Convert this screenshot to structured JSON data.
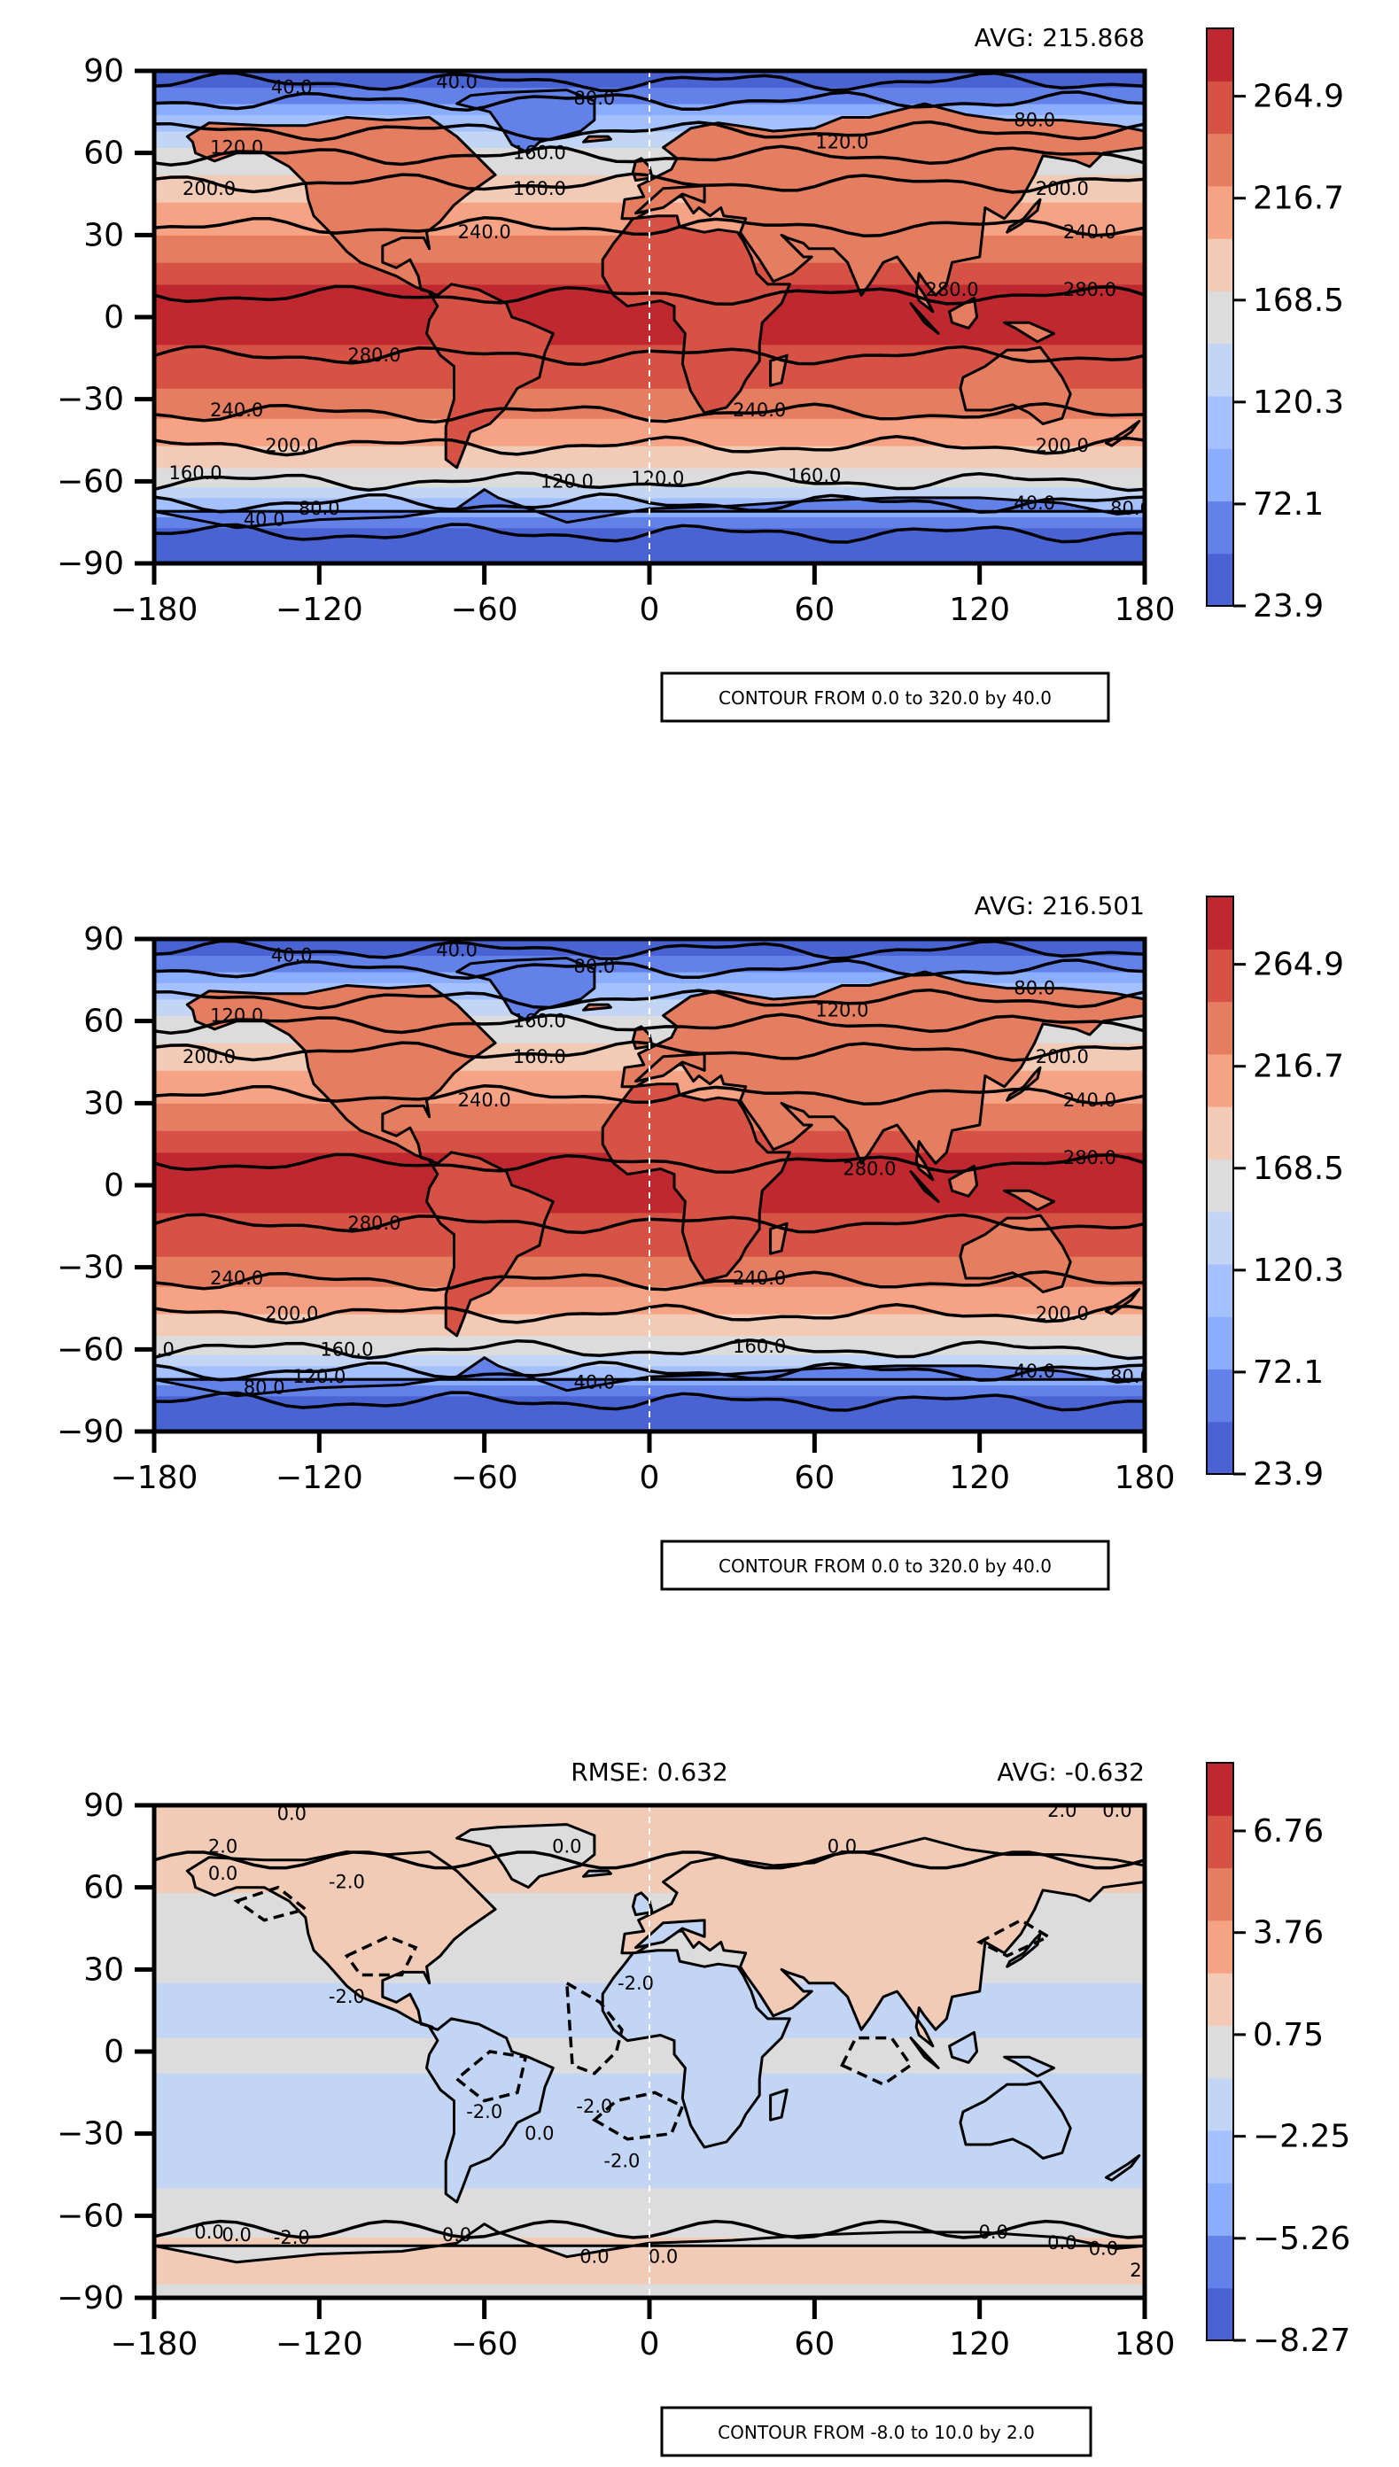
{
  "chart_data": [
    {
      "type": "heatmap",
      "avg_text": "AVG: 215.868",
      "rmse_text": "",
      "x_ticks": [
        "−180",
        "−120",
        "−60",
        "0",
        "60",
        "120",
        "180"
      ],
      "y_ticks": [
        "90",
        "60",
        "30",
        "0",
        "−30",
        "−60",
        "−90"
      ],
      "xlim": [
        -180,
        180
      ],
      "ylim": [
        -90,
        90
      ],
      "colorbar": {
        "min": 23.9,
        "max": 297.0,
        "tick_values": [
          23.9,
          72.1,
          120.3,
          168.5,
          216.7,
          264.9
        ],
        "tick_labels": [
          "23.9",
          "72.1",
          "120.3",
          "168.5",
          "216.7",
          "264.9"
        ],
        "colors": [
          "#4a63d3",
          "#6282ea",
          "#8badfd",
          "#a4c1fe",
          "#c3d5f4",
          "#dcdcdc",
          "#f2cbb7",
          "#f6a385",
          "#e57e60",
          "#d65244",
          "#c0282f"
        ]
      },
      "contour_labels": [
        "40.0",
        "40.0",
        "80.0",
        "120.0",
        "160.0",
        "120.0",
        "80.0",
        "200.0",
        "160.0",
        "200.0",
        "240.0",
        "240.0",
        "280.0",
        "280.0",
        "280.0",
        "240.0",
        "240.0",
        "200.0",
        "200.0",
        "160.0",
        "120.0",
        "120.0",
        "160.0",
        "80.0",
        "40.0",
        "40.0",
        "80.0"
      ],
      "note": "CONTOUR FROM 0.0 to 320.0 by 40.0"
    },
    {
      "type": "heatmap",
      "avg_text": "AVG: 216.501",
      "rmse_text": "",
      "x_ticks": [
        "−180",
        "−120",
        "−60",
        "0",
        "60",
        "120",
        "180"
      ],
      "y_ticks": [
        "90",
        "60",
        "30",
        "0",
        "−30",
        "−60",
        "−90"
      ],
      "xlim": [
        -180,
        180
      ],
      "ylim": [
        -90,
        90
      ],
      "colorbar": {
        "min": 23.9,
        "max": 297.0,
        "tick_values": [
          23.9,
          72.1,
          120.3,
          168.5,
          216.7,
          264.9
        ],
        "tick_labels": [
          "23.9",
          "72.1",
          "120.3",
          "168.5",
          "216.7",
          "264.9"
        ],
        "colors": [
          "#4a63d3",
          "#6282ea",
          "#8badfd",
          "#a4c1fe",
          "#c3d5f4",
          "#dcdcdc",
          "#f2cbb7",
          "#f6a385",
          "#e57e60",
          "#d65244",
          "#c0282f"
        ]
      },
      "contour_labels": [
        "40.0",
        "40.0",
        "80.0",
        "120.0",
        "160.0",
        "120.0",
        "80.0",
        "200.0",
        "160.0",
        "200.0",
        "240.0",
        "240.0",
        "280.0",
        "280.0",
        "280.0",
        "240.0",
        "240.0",
        "200.0",
        "200.0",
        "160.0",
        "160.0",
        "120.0",
        "80.0",
        "40.0",
        "40.0",
        "80.0",
        "0.0"
      ],
      "note": "CONTOUR FROM 0.0 to 320.0 by 40.0"
    },
    {
      "type": "heatmap",
      "avg_text": "AVG: -0.632",
      "rmse_text": "RMSE: 0.632",
      "x_ticks": [
        "−180",
        "−120",
        "−60",
        "0",
        "60",
        "120",
        "180"
      ],
      "y_ticks": [
        "90",
        "60",
        "30",
        "0",
        "−30",
        "−60",
        "−90"
      ],
      "xlim": [
        -180,
        180
      ],
      "ylim": [
        -90,
        90
      ],
      "colorbar": {
        "min": -8.27,
        "max": 8.77,
        "tick_values": [
          -8.27,
          -5.26,
          -2.25,
          0.75,
          3.76,
          6.76
        ],
        "tick_labels": [
          "−8.27",
          "−5.26",
          "−2.25",
          "0.75",
          "3.76",
          "6.76"
        ],
        "colors": [
          "#4a63d3",
          "#6282ea",
          "#8badfd",
          "#a4c1fe",
          "#c3d5f4",
          "#dcdcdc",
          "#f2cbb7",
          "#f6a385",
          "#e57e60",
          "#d65244",
          "#c0282f"
        ]
      },
      "contour_labels": [
        "0.0",
        "2.0",
        "0.0",
        "-2.0",
        "0.0",
        "0.0",
        "-2.0",
        "0.0",
        "2.0",
        "0.0",
        "-2.0",
        "-2.0",
        "-2.0",
        "-2.0",
        "0.0",
        "0.0",
        "0.0",
        "-2.0",
        "0.0",
        "0.0",
        "0.0",
        "0.0",
        "0.0",
        "2.0"
      ],
      "note": "CONTOUR FROM -8.0 to 10.0 by 2.0"
    }
  ]
}
